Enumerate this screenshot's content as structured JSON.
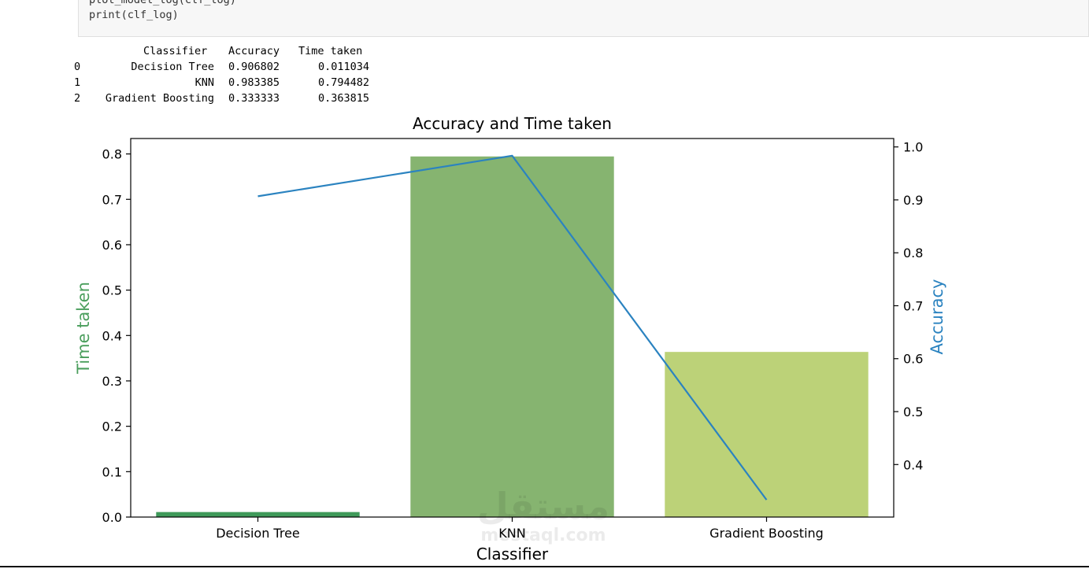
{
  "code": {
    "lines": [
      "plot_model_log(clf_log)",
      "print(clf_log)"
    ]
  },
  "output_table": {
    "headers": [
      "Classifier",
      "Accuracy",
      "Time taken"
    ],
    "rows": [
      {
        "index": "0",
        "classifier": "Decision Tree",
        "accuracy": "0.906802",
        "time": "0.011034"
      },
      {
        "index": "1",
        "classifier": "KNN",
        "accuracy": "0.983385",
        "time": "0.794482"
      },
      {
        "index": "2",
        "classifier": "Gradient Boosting",
        "accuracy": "0.333333",
        "time": "0.363815"
      }
    ]
  },
  "chart_data": {
    "type": "bar",
    "title": "Accuracy and Time taken",
    "xlabel": "Classifier",
    "categories": [
      "Decision Tree",
      "KNN",
      "Gradient Boosting"
    ],
    "bar_series": {
      "name": "Time taken",
      "values": [
        0.011034,
        0.794482,
        0.363815
      ],
      "colors": [
        "#3f9a5a",
        "#86b470",
        "#bcd278"
      ]
    },
    "line_series": {
      "name": "Accuracy",
      "values": [
        0.906802,
        0.983385,
        0.333333
      ],
      "color": "#2b83c0"
    },
    "y_left": {
      "label": "Time taken",
      "label_color": "#4a9e5c",
      "ticks": [
        "0.0",
        "0.1",
        "0.2",
        "0.3",
        "0.4",
        "0.5",
        "0.6",
        "0.7",
        "0.8"
      ],
      "range": [
        0,
        0.834
      ]
    },
    "y_right": {
      "label": "Accuracy",
      "label_color": "#2b83c0",
      "ticks": [
        "0.4",
        "0.5",
        "0.6",
        "0.7",
        "0.8",
        "0.9",
        "1.0"
      ],
      "range": [
        0.3008,
        1.0159
      ]
    },
    "grid": false
  },
  "watermark": {
    "big": "مستقل",
    "small": "mostaql.com"
  }
}
